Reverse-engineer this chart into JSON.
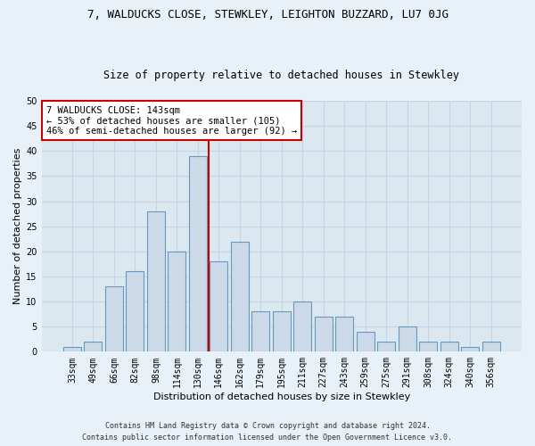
{
  "title_line1": "7, WALDUCKS CLOSE, STEWKLEY, LEIGHTON BUZZARD, LU7 0JG",
  "title_line2": "Size of property relative to detached houses in Stewkley",
  "xlabel": "Distribution of detached houses by size in Stewkley",
  "ylabel": "Number of detached properties",
  "categories": [
    "33sqm",
    "49sqm",
    "66sqm",
    "82sqm",
    "98sqm",
    "114sqm",
    "130sqm",
    "146sqm",
    "162sqm",
    "179sqm",
    "195sqm",
    "211sqm",
    "227sqm",
    "243sqm",
    "259sqm",
    "275sqm",
    "291sqm",
    "308sqm",
    "324sqm",
    "340sqm",
    "356sqm"
  ],
  "values": [
    1,
    2,
    13,
    16,
    28,
    20,
    39,
    18,
    22,
    8,
    8,
    10,
    7,
    7,
    4,
    2,
    5,
    2,
    2,
    1,
    2
  ],
  "bar_color": "#ccd9e8",
  "bar_edge_color": "#6699bb",
  "vline_index": 6.5,
  "vline_color": "#cc0000",
  "annotation_title": "7 WALDUCKS CLOSE: 143sqm",
  "annotation_line1": "← 53% of detached houses are smaller (105)",
  "annotation_line2": "46% of semi-detached houses are larger (92) →",
  "annotation_box_facecolor": "#ffffff",
  "annotation_box_edgecolor": "#cc0000",
  "ylim": [
    0,
    50
  ],
  "yticks": [
    0,
    5,
    10,
    15,
    20,
    25,
    30,
    35,
    40,
    45,
    50
  ],
  "grid_color": "#c8d4e4",
  "plot_bg_color": "#dce8f0",
  "fig_bg_color": "#e8f0f8",
  "title_fontsize": 9,
  "subtitle_fontsize": 8.5,
  "tick_fontsize": 7,
  "ylabel_fontsize": 8,
  "xlabel_fontsize": 8,
  "footer_line1": "Contains HM Land Registry data © Crown copyright and database right 2024.",
  "footer_line2": "Contains public sector information licensed under the Open Government Licence v3.0."
}
